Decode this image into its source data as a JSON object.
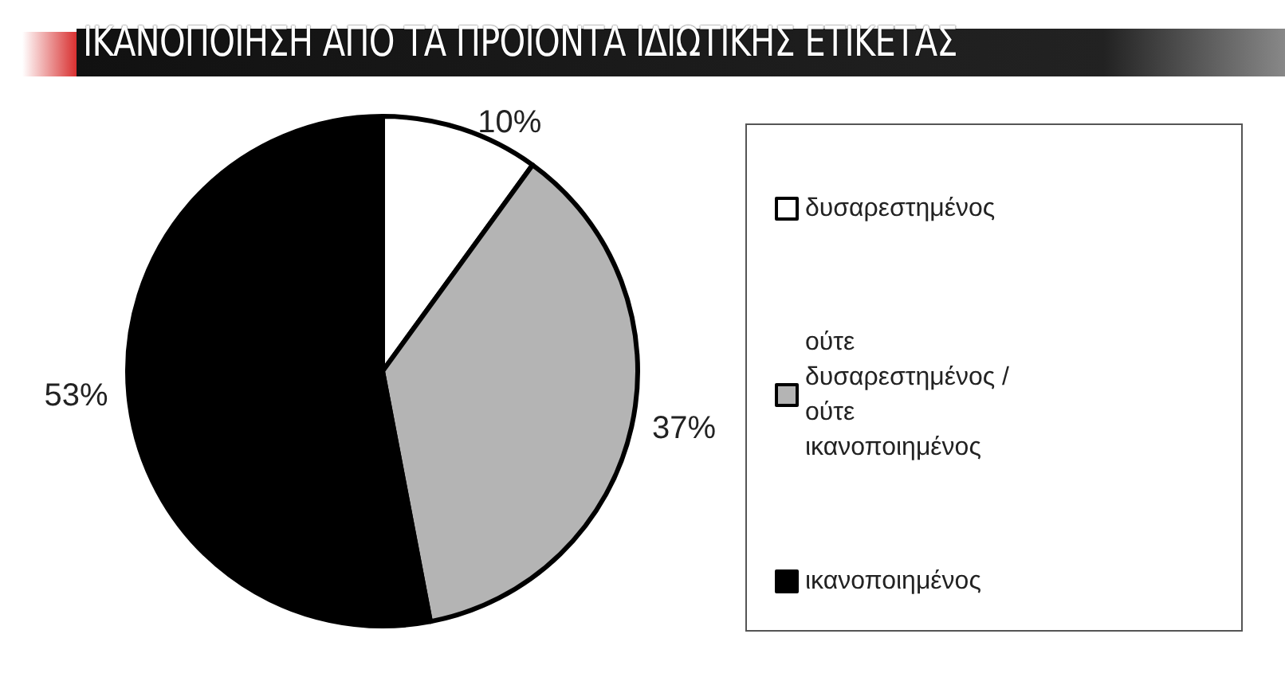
{
  "chart_data": {
    "type": "pie",
    "title": "ΙΚΑΝΟΠΟΙΗΣΗ ΑΠΟ ΤΑ ΠΡΟΙΟΝΤΑ ΙΔΙΩΤΙΚΗΣ ΕΤΙΚΕΤΑΣ",
    "categories": [
      "δυσαρεστημένος",
      "ούτε δυσαρεστημένος / ούτε ικανοποιημένος",
      "ικανοποιημένος"
    ],
    "values": [
      10,
      37,
      53
    ],
    "colors": [
      "#ffffff",
      "#b4b4b4",
      "#000000"
    ],
    "value_labels": [
      "10%",
      "37%",
      "53%"
    ],
    "legend": "right"
  }
}
